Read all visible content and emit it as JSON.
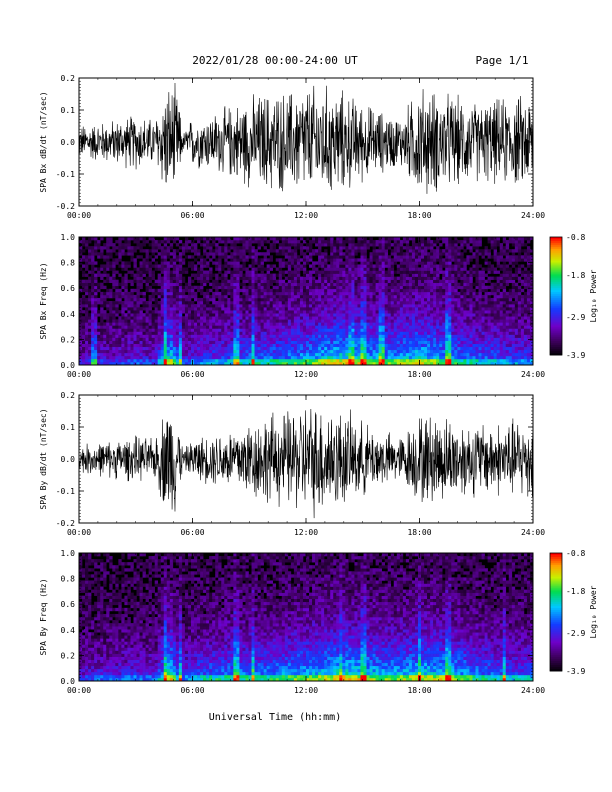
{
  "header": {
    "date_range": "2022/01/28  00:00-24:00 UT",
    "page": "Page 1/1"
  },
  "x_axis_title": "Universal Time (hh:mm)",
  "chart_data": [
    {
      "type": "line",
      "ylabel": "SPA Bx dB/dt (nT/sec)",
      "xlim": [
        0,
        24
      ],
      "ylim": [
        -0.2,
        0.2
      ],
      "x_ticks": [
        "00:00",
        "06:00",
        "12:00",
        "18:00",
        "24:00"
      ],
      "y_ticks": [
        "0.2",
        "0.1",
        "0.0",
        "-0.1",
        "-0.2"
      ],
      "y_tick_values": [
        0.2,
        0.1,
        0.0,
        -0.1,
        -0.2
      ],
      "line_color": "#000000",
      "envelope": {
        "hours": [
          0,
          1,
          2,
          3,
          4,
          4.6,
          4.8,
          5.0,
          5.2,
          5.5,
          6,
          7,
          8,
          9,
          10,
          11,
          12,
          13,
          14,
          15,
          16,
          17,
          18,
          19,
          20,
          21,
          22,
          23,
          24
        ],
        "amplitude": [
          0.06,
          0.07,
          0.08,
          0.1,
          0.08,
          0.2,
          0.2,
          0.2,
          0.18,
          0.03,
          0.09,
          0.1,
          0.13,
          0.16,
          0.18,
          0.18,
          0.2,
          0.2,
          0.18,
          0.14,
          0.11,
          0.09,
          0.2,
          0.18,
          0.16,
          0.14,
          0.15,
          0.16,
          0.17
        ]
      }
    },
    {
      "type": "heatmap",
      "ylabel": "SPA Bx Freq (Hz)",
      "xlim": [
        0,
        24
      ],
      "ylim": [
        0.0,
        1.0
      ],
      "x_ticks": [
        "00:00",
        "06:00",
        "12:00",
        "18:00",
        "24:00"
      ],
      "y_ticks": [
        "1.0",
        "0.8",
        "0.6",
        "0.4",
        "0.2",
        "0.0"
      ],
      "y_tick_values": [
        1.0,
        0.8,
        0.6,
        0.4,
        0.2,
        0.0
      ],
      "colorbar": {
        "label": "Log₁₀ Power",
        "ticks": [
          "-0.8",
          "-1.8",
          "-2.9",
          "-3.9"
        ],
        "tick_values": [
          -0.8,
          -1.8,
          -2.9,
          -3.9
        ],
        "range": [
          -3.9,
          -0.8
        ]
      },
      "activity": {
        "hours": [
          0,
          1,
          2,
          3,
          4,
          4.8,
          5.5,
          6,
          7,
          8,
          9,
          10,
          11,
          12,
          13,
          14,
          15,
          16,
          17,
          18,
          19,
          20,
          21,
          22,
          23,
          24
        ],
        "level": [
          0.25,
          0.3,
          0.3,
          0.35,
          0.3,
          0.8,
          0.35,
          0.4,
          0.45,
          0.5,
          0.55,
          0.55,
          0.6,
          0.65,
          0.75,
          0.8,
          0.75,
          0.65,
          0.7,
          0.75,
          0.7,
          0.6,
          0.55,
          0.5,
          0.45,
          0.45
        ]
      },
      "bright_columns_hours": [
        0.8,
        4.6,
        5.35,
        8.3,
        9.2,
        14.4,
        15.0,
        16.0,
        19.5
      ]
    },
    {
      "type": "line",
      "ylabel": "SPA By dB/dt (nT/sec)",
      "xlim": [
        0,
        24
      ],
      "ylim": [
        -0.2,
        0.2
      ],
      "x_ticks": [
        "00:00",
        "06:00",
        "12:00",
        "18:00",
        "24:00"
      ],
      "y_ticks": [
        "0.2",
        "0.1",
        "0.0",
        "-0.1",
        "-0.2"
      ],
      "y_tick_values": [
        0.2,
        0.1,
        0.0,
        -0.1,
        -0.2
      ],
      "line_color": "#000000",
      "envelope": {
        "hours": [
          0,
          1,
          2,
          3,
          4,
          4.6,
          4.8,
          5.0,
          5.2,
          5.5,
          6,
          7,
          8,
          9,
          10,
          11,
          12,
          13,
          14,
          15,
          16,
          17,
          18,
          19,
          20,
          21,
          22,
          23,
          24
        ],
        "amplitude": [
          0.05,
          0.06,
          0.07,
          0.08,
          0.07,
          0.2,
          0.2,
          0.2,
          0.18,
          0.03,
          0.07,
          0.09,
          0.11,
          0.14,
          0.16,
          0.17,
          0.2,
          0.2,
          0.17,
          0.13,
          0.1,
          0.08,
          0.16,
          0.16,
          0.14,
          0.13,
          0.13,
          0.14,
          0.15
        ]
      }
    },
    {
      "type": "heatmap",
      "ylabel": "SPA By Freq (Hz)",
      "xlim": [
        0,
        24
      ],
      "ylim": [
        0.0,
        1.0
      ],
      "x_ticks": [
        "00:00",
        "06:00",
        "12:00",
        "18:00",
        "24:00"
      ],
      "y_ticks": [
        "1.0",
        "0.8",
        "0.6",
        "0.4",
        "0.2",
        "0.0"
      ],
      "y_tick_values": [
        1.0,
        0.8,
        0.6,
        0.4,
        0.2,
        0.0
      ],
      "colorbar": {
        "label": "Log₁₀ Power",
        "ticks": [
          "-0.8",
          "-1.8",
          "-2.9",
          "-3.9"
        ],
        "tick_values": [
          -0.8,
          -1.8,
          -2.9,
          -3.9
        ],
        "range": [
          -3.9,
          -0.8
        ]
      },
      "activity": {
        "hours": [
          0,
          1,
          2,
          3,
          4,
          4.8,
          5.5,
          6,
          7,
          8,
          9,
          10,
          11,
          12,
          13,
          14,
          15,
          16,
          17,
          18,
          19,
          20,
          21,
          22,
          23,
          24
        ],
        "level": [
          0.3,
          0.35,
          0.35,
          0.4,
          0.35,
          0.85,
          0.4,
          0.5,
          0.55,
          0.6,
          0.6,
          0.6,
          0.65,
          0.7,
          0.75,
          0.8,
          0.75,
          0.7,
          0.7,
          0.75,
          0.75,
          0.7,
          0.6,
          0.55,
          0.5,
          0.5
        ]
      },
      "bright_columns_hours": [
        4.6,
        5.35,
        8.3,
        9.2,
        13.8,
        15.0,
        18.0,
        19.5,
        22.5
      ]
    }
  ]
}
